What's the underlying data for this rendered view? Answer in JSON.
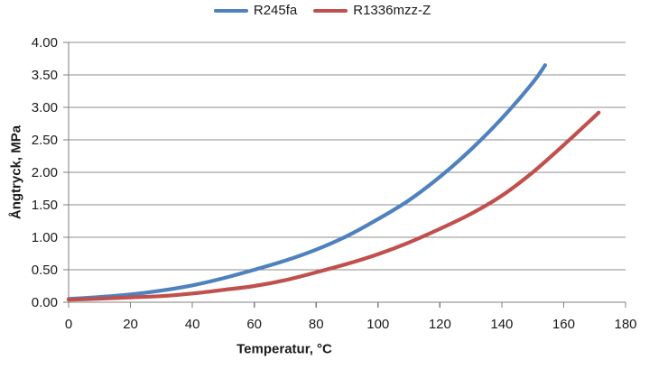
{
  "chart_data": {
    "type": "line",
    "title": "",
    "xlabel": "Temperatur, °C",
    "ylabel": "Ångtryck, MPa",
    "xlim": [
      0,
      180
    ],
    "ylim": [
      0,
      4
    ],
    "x_tick_values": [
      0,
      20,
      40,
      60,
      80,
      100,
      120,
      140,
      160,
      180
    ],
    "x_tick_labels": [
      "0",
      "20",
      "40",
      "60",
      "80",
      "100",
      "120",
      "140",
      "160",
      "180"
    ],
    "y_tick_values": [
      0,
      0.5,
      1,
      1.5,
      2,
      2.5,
      3,
      3.5,
      4
    ],
    "y_tick_labels": [
      "0.00",
      "0.50",
      "1.00",
      "1.50",
      "2.00",
      "2.50",
      "3.00",
      "3.50",
      "4.00"
    ],
    "grid": "horizontal",
    "legend_position": "top-center",
    "series": [
      {
        "name": "R245fa",
        "color": "#4F81BD",
        "x": [
          0,
          10,
          20,
          30,
          40,
          50,
          60,
          70,
          80,
          90,
          100,
          110,
          120,
          130,
          140,
          150,
          154
        ],
        "y": [
          0.05,
          0.08,
          0.12,
          0.18,
          0.26,
          0.37,
          0.5,
          0.64,
          0.81,
          1.02,
          1.28,
          1.57,
          1.93,
          2.35,
          2.83,
          3.38,
          3.65
        ]
      },
      {
        "name": "R1336mzz-Z",
        "color": "#C0504D",
        "x": [
          0,
          10,
          20,
          30,
          40,
          50,
          60,
          70,
          80,
          90,
          100,
          110,
          120,
          130,
          140,
          150,
          160,
          170,
          171.3
        ],
        "y": [
          0.04,
          0.055,
          0.075,
          0.095,
          0.135,
          0.19,
          0.25,
          0.34,
          0.46,
          0.59,
          0.74,
          0.92,
          1.13,
          1.36,
          1.64,
          2.0,
          2.42,
          2.86,
          2.92
        ]
      }
    ],
    "colors": {
      "gridline": "#8C8C8C",
      "axis": "#7F7F7F",
      "text": "#1A1A1A",
      "background": "#FFFFFF"
    }
  }
}
